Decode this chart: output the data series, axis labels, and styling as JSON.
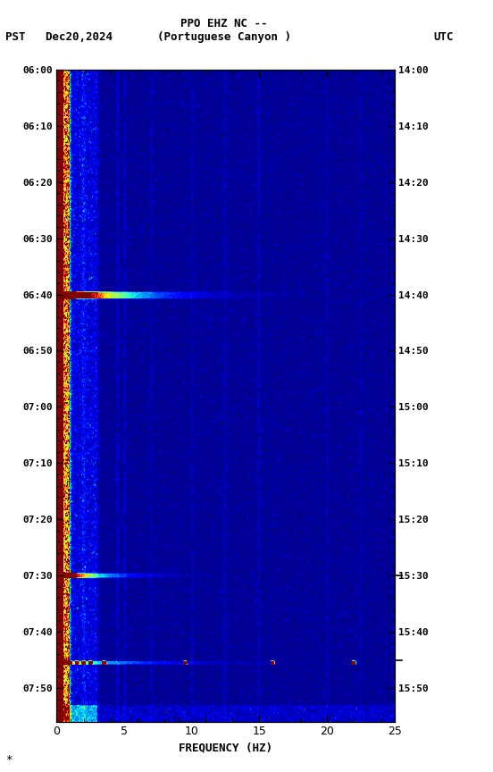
{
  "title_line1": "PPO EHZ NC --",
  "title_line2": "(Portuguese Canyon )",
  "left_label": "PST   Dec20,2024",
  "right_label": "UTC",
  "xlabel": "FREQUENCY (HZ)",
  "freq_min": 0,
  "freq_max": 25,
  "pst_ticks": [
    "06:00",
    "06:10",
    "06:20",
    "06:30",
    "06:40",
    "06:50",
    "07:00",
    "07:10",
    "07:20",
    "07:30",
    "07:40",
    "07:50"
  ],
  "utc_ticks": [
    "14:00",
    "14:10",
    "14:20",
    "14:30",
    "14:40",
    "14:50",
    "15:00",
    "15:10",
    "15:20",
    "15:30",
    "15:40",
    "15:50"
  ],
  "fig_bg": "#ffffff",
  "colormap": "jet",
  "note_text": "*"
}
